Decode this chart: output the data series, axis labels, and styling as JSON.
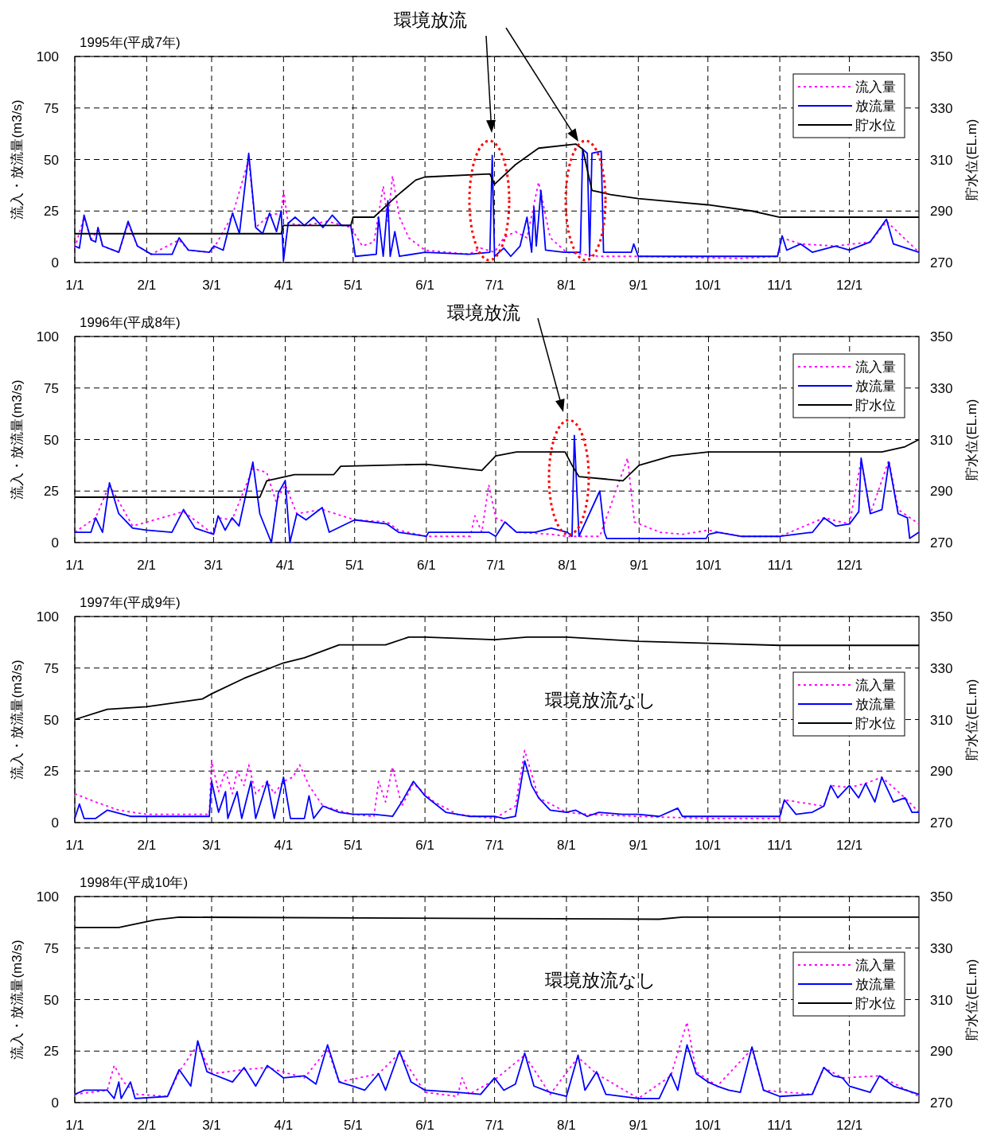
{
  "chart_data": [
    {
      "type": "line",
      "title": "1995年(平成7年)",
      "ylabel": "流入・放流量(m3/s)",
      "y2label": "貯水位(EL.m)",
      "annotations": [
        "環境放流"
      ],
      "grid": true,
      "legend": "top right",
      "xlim": [
        "1995-01-01",
        "1995-12-31"
      ],
      "ylim": [
        0,
        100
      ],
      "yticks": [
        0,
        25,
        50,
        75,
        100
      ],
      "y2lim": [
        270,
        350
      ],
      "y2ticks": [
        270,
        290,
        310,
        330,
        350
      ],
      "xticks": [
        {
          "value": "1995-01-01",
          "label": "1/1"
        },
        {
          "value": "1995-02-01",
          "label": "2/1"
        },
        {
          "value": "1995-03-01",
          "label": "3/1"
        },
        {
          "value": "1995-04-01",
          "label": "4/1"
        },
        {
          "value": "1995-05-01",
          "label": "5/1"
        },
        {
          "value": "1995-06-01",
          "label": "6/1"
        },
        {
          "value": "1995-07-01",
          "label": "7/1"
        },
        {
          "value": "1995-08-01",
          "label": "8/1"
        },
        {
          "value": "1995-09-01",
          "label": "9/1"
        },
        {
          "value": "1995-10-01",
          "label": "10/1"
        },
        {
          "value": "1995-11-01",
          "label": "11/1"
        },
        {
          "value": "1995-12-01",
          "label": "12/1"
        }
      ],
      "series": [
        {
          "name": "流入量",
          "color": "#ff00ff",
          "line_style": "dotted",
          "x": [
            "1995-01-01",
            "1995-01-05",
            "1995-01-08",
            "1995-01-11",
            "1995-01-13",
            "1995-01-20",
            "1995-01-24",
            "1995-01-28",
            "1995-02-03",
            "1995-02-15",
            "1995-02-19",
            "1995-02-28",
            "1995-03-02",
            "1995-03-10",
            "1995-03-17",
            "1995-03-20",
            "1995-03-26",
            "1995-03-31",
            "1995-04-01",
            "1995-04-03",
            "1995-04-10",
            "1995-04-20",
            "1995-04-30",
            "1995-05-05",
            "1995-05-10",
            "1995-05-14",
            "1995-05-16",
            "1995-05-18",
            "1995-05-21",
            "1995-05-25",
            "1995-06-01",
            "1995-06-20",
            "1995-06-25",
            "1995-07-01",
            "1995-07-05",
            "1995-07-10",
            "1995-07-15",
            "1995-07-20",
            "1995-07-25",
            "1995-08-01",
            "1995-08-15",
            "1995-09-01",
            "1995-10-15",
            "1995-10-31",
            "1995-11-02",
            "1995-11-10",
            "1995-11-25",
            "1995-12-10",
            "1995-12-17",
            "1995-12-31"
          ],
          "values": [
            7,
            22,
            11,
            16,
            8,
            5,
            19,
            8,
            4,
            11,
            6,
            5,
            7,
            23,
            50,
            17,
            23,
            24,
            35,
            19,
            18,
            20,
            17,
            8,
            10,
            37,
            20,
            42,
            22,
            12,
            6,
            4,
            7,
            5,
            12,
            15,
            12,
            39,
            12,
            5,
            3,
            3,
            2,
            3,
            12,
            9,
            8,
            10,
            20,
            5
          ]
        },
        {
          "name": "放流量",
          "color": "#0000ff",
          "line_style": "solid",
          "x": [
            "1995-01-01",
            "1995-01-03",
            "1995-01-05",
            "1995-01-08",
            "1995-01-10",
            "1995-01-11",
            "1995-01-13",
            "1995-01-20",
            "1995-01-24",
            "1995-01-28",
            "1995-02-03",
            "1995-02-12",
            "1995-02-15",
            "1995-02-19",
            "1995-02-28",
            "1995-03-02",
            "1995-03-06",
            "1995-03-10",
            "1995-03-13",
            "1995-03-17",
            "1995-03-20",
            "1995-03-23",
            "1995-03-26",
            "1995-03-29",
            "1995-03-31",
            "1995-04-01",
            "1995-04-03",
            "1995-04-06",
            "1995-04-10",
            "1995-04-14",
            "1995-04-18",
            "1995-04-22",
            "1995-04-26",
            "1995-04-30",
            "1995-05-02",
            "1995-05-11",
            "1995-05-12",
            "1995-05-14",
            "1995-05-16",
            "1995-05-17",
            "1995-05-19",
            "1995-05-21",
            "1995-06-01",
            "1995-06-20",
            "1995-06-29",
            "1995-06-30",
            "1995-07-01",
            "1995-07-05",
            "1995-07-08",
            "1995-07-12",
            "1995-07-15",
            "1995-07-17",
            "1995-07-18",
            "1995-07-19",
            "1995-07-21",
            "1995-07-23",
            "1995-07-31",
            "1995-08-07",
            "1995-08-08",
            "1995-08-10",
            "1995-08-11",
            "1995-08-12",
            "1995-08-16",
            "1995-08-17",
            "1995-08-29",
            "1995-08-30",
            "1995-09-01",
            "1995-10-31",
            "1995-11-02",
            "1995-11-04",
            "1995-11-10",
            "1995-11-15",
            "1995-11-25",
            "1995-12-01",
            "1995-12-10",
            "1995-12-17",
            "1995-12-20",
            "1995-12-31"
          ],
          "values": [
            8,
            7,
            23,
            11,
            10,
            17,
            8,
            5,
            20,
            8,
            4,
            4,
            12,
            6,
            5,
            8,
            6,
            24,
            14,
            53,
            17,
            14,
            24,
            15,
            25,
            1,
            19,
            22,
            18,
            22,
            17,
            23,
            18,
            18,
            3,
            4,
            22,
            3,
            30,
            3,
            15,
            3,
            5,
            4,
            5,
            52,
            3,
            7,
            3,
            8,
            22,
            5,
            27,
            8,
            35,
            6,
            5,
            5,
            55,
            53,
            3,
            53,
            54,
            5,
            5,
            9,
            3,
            3,
            13,
            6,
            9,
            5,
            8,
            6,
            10,
            21,
            9,
            5
          ]
        },
        {
          "name": "貯水位",
          "color": "#000000",
          "line_style": "solid",
          "axis": "y2",
          "x": [
            "1995-01-01",
            "1995-03-31",
            "1995-04-01",
            "1995-04-30",
            "1995-05-01",
            "1995-05-10",
            "1995-05-20",
            "1995-05-28",
            "1995-06-01",
            "1995-06-29",
            "1995-07-01",
            "1995-07-10",
            "1995-07-20",
            "1995-08-05",
            "1995-08-08",
            "1995-08-12",
            "1995-08-20",
            "1995-09-01",
            "1995-10-01",
            "1995-10-20",
            "1995-11-01",
            "1995-12-31"
          ],
          "values": [
            281.2,
            281.2,
            284.4,
            284.4,
            287.6,
            287.6,
            296,
            302,
            303.2,
            304.4,
            300.4,
            308,
            314.4,
            316,
            314,
            298,
            296.4,
            294.8,
            292.4,
            290,
            287.6,
            287.6
          ]
        }
      ]
    },
    {
      "type": "line",
      "title": "1996年(平成8年)",
      "ylabel": "流入・放流量(m3/s)",
      "y2label": "貯水位(EL.m)",
      "annotations": [
        "環境放流"
      ],
      "grid": true,
      "legend": "top right",
      "xlim": [
        "1996-01-01",
        "1996-12-31"
      ],
      "ylim": [
        0,
        100
      ],
      "yticks": [
        0,
        25,
        50,
        75,
        100
      ],
      "y2lim": [
        270,
        350
      ],
      "y2ticks": [
        270,
        290,
        310,
        330,
        350
      ],
      "xticks": [
        {
          "value": "1996-01-01",
          "label": "1/1"
        },
        {
          "value": "1996-02-01",
          "label": "2/1"
        },
        {
          "value": "1996-03-01",
          "label": "3/1"
        },
        {
          "value": "1996-04-01",
          "label": "4/1"
        },
        {
          "value": "1996-05-01",
          "label": "5/1"
        },
        {
          "value": "1996-06-01",
          "label": "6/1"
        },
        {
          "value": "1996-07-01",
          "label": "7/1"
        },
        {
          "value": "1996-08-01",
          "label": "8/1"
        },
        {
          "value": "1996-09-01",
          "label": "9/1"
        },
        {
          "value": "1996-10-01",
          "label": "10/1"
        },
        {
          "value": "1996-11-01",
          "label": "11/1"
        },
        {
          "value": "1996-12-01",
          "label": "12/1"
        }
      ],
      "series": [
        {
          "name": "流入量",
          "color": "#ff00ff",
          "line_style": "dotted",
          "x": [
            "1996-01-01",
            "1996-01-10",
            "1996-01-16",
            "1996-01-26",
            "1996-02-17",
            "1996-03-01",
            "1996-03-03",
            "1996-03-09",
            "1996-03-18",
            "1996-03-24",
            "1996-03-28",
            "1996-04-01",
            "1996-04-06",
            "1996-04-17",
            "1996-05-01",
            "1996-05-15",
            "1996-05-20",
            "1996-06-01",
            "1996-06-20",
            "1996-06-22",
            "1996-06-25",
            "1996-06-28",
            "1996-07-01",
            "1996-07-05",
            "1996-07-10",
            "1996-07-25",
            "1996-08-01",
            "1996-08-15",
            "1996-08-27",
            "1996-08-30",
            "1996-09-10",
            "1996-09-20",
            "1996-10-01",
            "1996-10-15",
            "1996-11-01",
            "1996-11-20",
            "1996-12-01",
            "1996-12-06",
            "1996-12-10",
            "1996-12-18",
            "1996-12-22",
            "1996-12-31"
          ],
          "values": [
            5,
            12,
            28,
            8,
            15,
            4,
            12,
            11,
            36,
            34,
            20,
            28,
            14,
            16,
            11,
            10,
            6,
            3,
            3,
            13,
            5,
            28,
            12,
            10,
            5,
            4,
            3,
            3,
            41,
            10,
            5,
            4,
            6,
            3,
            3,
            12,
            9,
            40,
            14,
            40,
            16,
            9
          ]
        },
        {
          "name": "放流量",
          "color": "#0000ff",
          "line_style": "solid",
          "x": [
            "1996-01-01",
            "1996-01-08",
            "1996-01-10",
            "1996-01-13",
            "1996-01-16",
            "1996-01-20",
            "1996-01-26",
            "1996-02-01",
            "1996-02-12",
            "1996-02-17",
            "1996-02-22",
            "1996-03-01",
            "1996-03-03",
            "1996-03-06",
            "1996-03-09",
            "1996-03-12",
            "1996-03-18",
            "1996-03-21",
            "1996-03-26",
            "1996-03-29",
            "1996-04-01",
            "1996-04-03",
            "1996-04-06",
            "1996-04-10",
            "1996-04-17",
            "1996-04-20",
            "1996-05-01",
            "1996-05-15",
            "1996-05-20",
            "1996-06-01",
            "1996-06-02",
            "1996-06-28",
            "1996-07-01",
            "1996-07-05",
            "1996-07-10",
            "1996-07-18",
            "1996-07-25",
            "1996-08-01",
            "1996-08-03",
            "1996-08-04",
            "1996-08-06",
            "1996-08-15",
            "1996-08-17",
            "1996-08-18",
            "1996-09-30",
            "1996-10-01",
            "1996-10-05",
            "1996-10-15",
            "1996-11-01",
            "1996-11-15",
            "1996-11-20",
            "1996-11-25",
            "1996-12-01",
            "1996-12-05",
            "1996-12-06",
            "1996-12-10",
            "1996-12-15",
            "1996-12-18",
            "1996-12-22",
            "1996-12-26",
            "1996-12-27",
            "1996-12-31"
          ],
          "values": [
            5,
            5,
            12,
            5,
            29,
            14,
            7,
            6,
            5,
            16,
            7,
            4,
            13,
            6,
            12,
            8,
            39,
            14,
            0,
            24,
            30,
            0,
            14,
            11,
            17,
            5,
            11,
            9,
            5,
            3,
            5,
            5,
            3,
            10,
            5,
            5,
            7,
            5,
            3,
            52,
            3,
            25,
            5,
            2,
            2,
            4,
            5,
            3,
            3,
            5,
            12,
            8,
            9,
            15,
            41,
            14,
            16,
            39,
            14,
            12,
            2,
            5
          ]
        },
        {
          "name": "貯水位",
          "color": "#000000",
          "line_style": "solid",
          "axis": "y2",
          "x": [
            "1996-01-01",
            "1996-03-21",
            "1996-03-24",
            "1996-04-05",
            "1996-04-22",
            "1996-04-25",
            "1996-06-01",
            "1996-06-25",
            "1996-07-01",
            "1996-07-10",
            "1996-07-31",
            "1996-08-03",
            "1996-08-06",
            "1996-08-25",
            "1996-09-01",
            "1996-09-15",
            "1996-10-01",
            "1996-12-15",
            "1996-12-25",
            "1996-12-31"
          ],
          "values": [
            287.6,
            287.6,
            294,
            296.4,
            296.4,
            299.6,
            300.4,
            298,
            303.6,
            305.2,
            305.2,
            300,
            295.6,
            294,
            300,
            303.6,
            305.2,
            305.2,
            307.2,
            310
          ]
        }
      ]
    },
    {
      "type": "line",
      "title": "1997年(平成9年)",
      "ylabel": "流入・放流量(m3/s)",
      "y2label": "貯水位(EL.m)",
      "annotations": [
        "環境放流なし"
      ],
      "grid": true,
      "legend": "right",
      "xlim": [
        "1997-01-01",
        "1997-12-31"
      ],
      "ylim": [
        0,
        100
      ],
      "yticks": [
        0,
        25,
        50,
        75,
        100
      ],
      "y2lim": [
        270,
        350
      ],
      "y2ticks": [
        270,
        290,
        310,
        330,
        350
      ],
      "xticks": [
        {
          "value": "1997-01-01",
          "label": "1/1"
        },
        {
          "value": "1997-02-01",
          "label": "2/1"
        },
        {
          "value": "1997-03-01",
          "label": "3/1"
        },
        {
          "value": "1997-04-01",
          "label": "4/1"
        },
        {
          "value": "1997-05-01",
          "label": "5/1"
        },
        {
          "value": "1997-06-01",
          "label": "6/1"
        },
        {
          "value": "1997-07-01",
          "label": "7/1"
        },
        {
          "value": "1997-08-01",
          "label": "8/1"
        },
        {
          "value": "1997-09-01",
          "label": "9/1"
        },
        {
          "value": "1997-10-01",
          "label": "10/1"
        },
        {
          "value": "1997-11-01",
          "label": "11/1"
        },
        {
          "value": "1997-12-01",
          "label": "12/1"
        }
      ],
      "series": [
        {
          "name": "流入量",
          "color": "#ff00ff",
          "line_style": "dotted",
          "x": [
            "1997-01-01",
            "1997-01-10",
            "1997-01-20",
            "1997-02-01",
            "1997-02-28",
            "1997-03-01",
            "1997-03-04",
            "1997-03-07",
            "1997-03-10",
            "1997-03-12",
            "1997-03-15",
            "1997-03-17",
            "1997-03-20",
            "1997-03-25",
            "1997-03-28",
            "1997-04-01",
            "1997-04-05",
            "1997-04-08",
            "1997-04-12",
            "1997-04-18",
            "1997-05-01",
            "1997-05-10",
            "1997-05-12",
            "1997-05-15",
            "1997-05-18",
            "1997-05-22",
            "1997-05-27",
            "1997-06-05",
            "1997-06-15",
            "1997-07-01",
            "1997-07-10",
            "1997-07-14",
            "1997-07-20",
            "1997-08-01",
            "1997-08-10",
            "1997-09-01",
            "1997-10-01",
            "1997-11-01",
            "1997-11-03",
            "1997-11-20",
            "1997-11-23",
            "1997-12-01",
            "1997-12-08",
            "1997-12-15",
            "1997-12-25",
            "1997-12-31"
          ],
          "values": [
            14,
            10,
            6,
            4,
            4,
            30,
            15,
            25,
            14,
            25,
            18,
            28,
            14,
            20,
            14,
            20,
            22,
            28,
            18,
            8,
            4,
            3,
            20,
            10,
            27,
            8,
            19,
            10,
            4,
            2,
            8,
            35,
            12,
            5,
            4,
            3,
            2,
            2,
            11,
            8,
            18,
            17,
            19,
            22,
            12,
            5
          ]
        },
        {
          "name": "放流量",
          "color": "#0000ff",
          "line_style": "solid",
          "x": [
            "1997-01-01",
            "1997-01-03",
            "1997-01-05",
            "1997-01-10",
            "1997-01-15",
            "1997-01-25",
            "1997-02-01",
            "1997-02-28",
            "1997-03-01",
            "1997-03-04",
            "1997-03-07",
            "1997-03-08",
            "1997-03-12",
            "1997-03-14",
            "1997-03-18",
            "1997-03-20",
            "1997-03-25",
            "1997-03-28",
            "1997-04-01",
            "1997-04-04",
            "1997-04-10",
            "1997-04-12",
            "1997-04-14",
            "1997-04-18",
            "1997-04-25",
            "1997-05-01",
            "1997-05-10",
            "1997-05-18",
            "1997-05-22",
            "1997-05-27",
            "1997-06-01",
            "1997-06-10",
            "1997-06-20",
            "1997-07-01",
            "1997-07-05",
            "1997-07-10",
            "1997-07-14",
            "1997-07-17",
            "1997-07-20",
            "1997-07-25",
            "1997-08-01",
            "1997-08-05",
            "1997-08-10",
            "1997-08-15",
            "1997-08-25",
            "1997-09-01",
            "1997-09-10",
            "1997-09-18",
            "1997-09-20",
            "1997-10-01",
            "1997-11-01",
            "1997-11-03",
            "1997-11-08",
            "1997-11-15",
            "1997-11-20",
            "1997-11-23",
            "1997-11-26",
            "1997-12-01",
            "1997-12-05",
            "1997-12-08",
            "1997-12-12",
            "1997-12-15",
            "1997-12-20",
            "1997-12-25",
            "1997-12-28",
            "1997-12-31"
          ],
          "values": [
            2,
            9,
            2,
            2,
            6,
            3,
            3,
            3,
            20,
            5,
            15,
            2,
            15,
            2,
            20,
            2,
            20,
            2,
            22,
            2,
            2,
            13,
            2,
            8,
            5,
            4,
            4,
            3,
            10,
            20,
            13,
            5,
            3,
            3,
            2,
            3,
            30,
            18,
            12,
            6,
            5,
            6,
            3,
            5,
            4,
            4,
            3,
            7,
            3,
            3,
            3,
            11,
            4,
            5,
            8,
            18,
            12,
            18,
            12,
            19,
            10,
            22,
            10,
            12,
            5,
            5
          ]
        },
        {
          "name": "貯水位",
          "color": "#000000",
          "line_style": "solid",
          "axis": "y2",
          "x": [
            "1997-01-01",
            "1997-01-15",
            "1997-02-01",
            "1997-02-25",
            "1997-03-01",
            "1997-03-15",
            "1997-04-01",
            "1997-04-10",
            "1997-04-25",
            "1997-05-15",
            "1997-05-25",
            "1997-06-01",
            "1997-07-01",
            "1997-07-15",
            "1997-08-01",
            "1997-08-20",
            "1997-09-01",
            "1997-10-01",
            "1997-11-01",
            "1997-12-31"
          ],
          "values": [
            310,
            314,
            315,
            318,
            320,
            326,
            332,
            334,
            339,
            339,
            342,
            342,
            341,
            342,
            342,
            341,
            340.4,
            339.6,
            338.8,
            338.8
          ]
        }
      ]
    },
    {
      "type": "line",
      "title": "1998年(平成10年)",
      "ylabel": "流入・放流量(m3/s)",
      "y2label": "貯水位(EL.m)",
      "annotations": [
        "環境放流なし"
      ],
      "grid": true,
      "legend": "right",
      "xlim": [
        "1998-01-01",
        "1998-12-31"
      ],
      "ylim": [
        0,
        100
      ],
      "yticks": [
        0,
        25,
        50,
        75,
        100
      ],
      "y2lim": [
        270,
        350
      ],
      "y2ticks": [
        270,
        290,
        310,
        330,
        350
      ],
      "xticks": [
        {
          "value": "1998-01-01",
          "label": "1/1"
        },
        {
          "value": "1998-02-01",
          "label": "2/1"
        },
        {
          "value": "1998-03-01",
          "label": "3/1"
        },
        {
          "value": "1998-04-01",
          "label": "4/1"
        },
        {
          "value": "1998-05-01",
          "label": "5/1"
        },
        {
          "value": "1998-06-01",
          "label": "6/1"
        },
        {
          "value": "1998-07-01",
          "label": "7/1"
        },
        {
          "value": "1998-08-01",
          "label": "8/1"
        },
        {
          "value": "1998-09-01",
          "label": "9/1"
        },
        {
          "value": "1998-10-01",
          "label": "10/1"
        },
        {
          "value": "1998-11-01",
          "label": "11/1"
        },
        {
          "value": "1998-12-01",
          "label": "12/1"
        }
      ],
      "series": [
        {
          "name": "流入量",
          "color": "#ff00ff",
          "line_style": "dotted",
          "x": [
            "1998-01-01",
            "1998-01-15",
            "1998-01-18",
            "1998-01-22",
            "1998-01-28",
            "1998-02-10",
            "1998-02-15",
            "1998-02-23",
            "1998-03-01",
            "1998-03-15",
            "1998-03-25",
            "1998-04-10",
            "1998-04-20",
            "1998-04-25",
            "1998-05-12",
            "1998-05-21",
            "1998-06-01",
            "1998-06-15",
            "1998-06-17",
            "1998-06-20",
            "1998-07-01",
            "1998-07-14",
            "1998-07-25",
            "1998-08-06",
            "1998-08-14",
            "1998-09-01",
            "1998-09-15",
            "1998-09-22",
            "1998-09-26",
            "1998-10-05",
            "1998-10-20",
            "1998-10-25",
            "1998-11-15",
            "1998-11-20",
            "1998-11-28",
            "1998-12-14",
            "1998-12-31"
          ],
          "values": [
            4,
            6,
            18,
            10,
            4,
            3,
            15,
            28,
            14,
            16,
            17,
            12,
            26,
            10,
            14,
            24,
            5,
            3,
            12,
            4,
            11,
            23,
            4,
            22,
            14,
            2,
            13,
            39,
            15,
            8,
            26,
            6,
            4,
            17,
            12,
            13,
            3
          ]
        },
        {
          "name": "放流量",
          "color": "#0000ff",
          "line_style": "solid",
          "x": [
            "1998-01-01",
            "1998-01-05",
            "1998-01-15",
            "1998-01-18",
            "1998-01-20",
            "1998-01-21",
            "1998-01-25",
            "1998-01-27",
            "1998-02-10",
            "1998-02-15",
            "1998-02-20",
            "1998-02-23",
            "1998-02-27",
            "1998-03-01",
            "1998-03-10",
            "1998-03-15",
            "1998-03-20",
            "1998-03-25",
            "1998-04-01",
            "1998-04-10",
            "1998-04-15",
            "1998-04-20",
            "1998-04-25",
            "1998-05-01",
            "1998-05-06",
            "1998-05-12",
            "1998-05-15",
            "1998-05-21",
            "1998-05-26",
            "1998-06-01",
            "1998-06-15",
            "1998-06-25",
            "1998-07-01",
            "1998-07-05",
            "1998-07-10",
            "1998-07-14",
            "1998-07-18",
            "1998-07-25",
            "1998-08-01",
            "1998-08-06",
            "1998-08-09",
            "1998-08-14",
            "1998-08-18",
            "1998-09-01",
            "1998-09-10",
            "1998-09-15",
            "1998-09-18",
            "1998-09-22",
            "1998-09-26",
            "1998-10-01",
            "1998-10-05",
            "1998-10-10",
            "1998-10-15",
            "1998-10-20",
            "1998-10-25",
            "1998-11-01",
            "1998-11-15",
            "1998-11-20",
            "1998-11-24",
            "1998-11-28",
            "1998-12-01",
            "1998-12-10",
            "1998-12-14",
            "1998-12-20",
            "1998-12-31"
          ],
          "values": [
            4,
            6,
            6,
            2,
            10,
            2,
            10,
            2,
            3,
            16,
            8,
            30,
            15,
            14,
            10,
            17,
            8,
            18,
            12,
            13,
            9,
            28,
            10,
            8,
            6,
            14,
            6,
            25,
            10,
            6,
            5,
            4,
            12,
            6,
            9,
            24,
            8,
            5,
            3,
            23,
            6,
            15,
            4,
            2,
            2,
            14,
            6,
            28,
            14,
            10,
            8,
            6,
            5,
            27,
            6,
            3,
            4,
            17,
            13,
            12,
            8,
            5,
            13,
            8,
            4
          ]
        },
        {
          "name": "貯水位",
          "color": "#000000",
          "line_style": "solid",
          "axis": "y2",
          "x": [
            "1998-01-01",
            "1998-01-20",
            "1998-02-05",
            "1998-02-15",
            "1998-09-10",
            "1998-09-20",
            "1998-12-31"
          ],
          "values": [
            338,
            338,
            341,
            342,
            341.2,
            342,
            342
          ]
        }
      ]
    }
  ]
}
